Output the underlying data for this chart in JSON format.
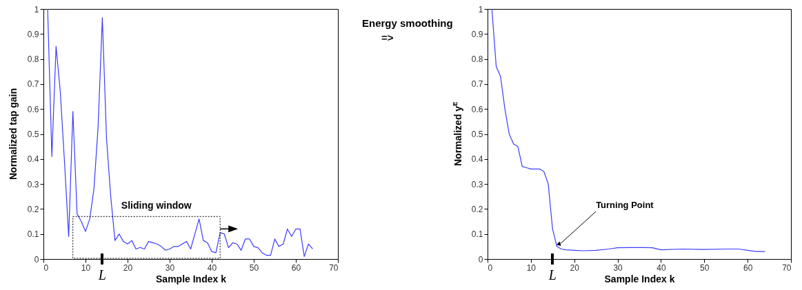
{
  "chart_data": [
    {
      "type": "line",
      "xlabel": "Sample Index k",
      "ylabel": "Normalized tap gain",
      "x": [
        1,
        2,
        3,
        4,
        5,
        6,
        7,
        8,
        9,
        10,
        11,
        12,
        13,
        14,
        15,
        16,
        17,
        18,
        19,
        20,
        21,
        22,
        23,
        24,
        25,
        26,
        27,
        28,
        29,
        30,
        31,
        32,
        33,
        34,
        35,
        36,
        37,
        38,
        39,
        40,
        41,
        42,
        43,
        44,
        45,
        46,
        47,
        48,
        49,
        50,
        51,
        52,
        53,
        54,
        55,
        56,
        57,
        58,
        59,
        60,
        61,
        62,
        63,
        64
      ],
      "series": [
        {
          "color": "#3b3bff",
          "values": [
            1.0,
            0.41,
            0.85,
            0.67,
            0.39,
            0.09,
            0.59,
            0.18,
            0.15,
            0.11,
            0.16,
            0.28,
            0.53,
            0.965,
            0.48,
            0.25,
            0.074,
            0.1,
            0.07,
            0.06,
            0.074,
            0.04,
            0.046,
            0.04,
            0.07,
            0.065,
            0.06,
            0.05,
            0.035,
            0.04,
            0.05,
            0.05,
            0.06,
            0.07,
            0.04,
            0.1,
            0.16,
            0.074,
            0.065,
            0.03,
            0.025,
            0.105,
            0.1,
            0.045,
            0.065,
            0.06,
            0.035,
            0.08,
            0.08,
            0.05,
            0.045,
            0.025,
            0.015,
            0.015,
            0.08,
            0.05,
            0.06,
            0.12,
            0.09,
            0.12,
            0.12,
            0.01,
            0.06,
            0.04
          ]
        }
      ],
      "xlim": [
        0,
        70
      ],
      "xticks": [
        0,
        10,
        20,
        30,
        40,
        50,
        60,
        70
      ],
      "ylim": [
        0,
        1
      ],
      "yticks": [
        0,
        0.1,
        0.2,
        0.3,
        0.4,
        0.5,
        0.6,
        0.7,
        0.8,
        0.9,
        1
      ],
      "annotations": [
        "Sliding window",
        "L",
        "Energy smoothing",
        "=>"
      ]
    },
    {
      "type": "line",
      "xlabel": "Sample Index k",
      "ylabel": "Normalized y$^{E}$",
      "x": [
        1,
        2,
        3,
        4,
        5,
        6,
        7,
        8,
        9,
        10,
        11,
        12,
        13,
        14,
        15,
        16,
        17,
        18,
        20,
        22,
        25,
        28,
        30,
        33,
        36,
        38,
        40,
        45,
        50,
        55,
        58,
        60,
        62,
        64
      ],
      "series": [
        {
          "color": "#3b3bff",
          "values": [
            1.0,
            0.77,
            0.73,
            0.6,
            0.5,
            0.46,
            0.45,
            0.37,
            0.365,
            0.36,
            0.36,
            0.36,
            0.35,
            0.3,
            0.12,
            0.05,
            0.04,
            0.037,
            0.035,
            0.033,
            0.035,
            0.04,
            0.045,
            0.046,
            0.046,
            0.045,
            0.037,
            0.04,
            0.038,
            0.04,
            0.04,
            0.035,
            0.03,
            0.03
          ]
        }
      ],
      "xlim": [
        0,
        70
      ],
      "xticks": [
        0,
        10,
        20,
        30,
        40,
        50,
        60,
        70
      ],
      "ylim": [
        0,
        1
      ],
      "yticks": [
        0,
        0.1,
        0.2,
        0.3,
        0.4,
        0.5,
        0.6,
        0.7,
        0.8,
        0.9,
        1
      ],
      "annotations": [
        "L",
        {
          "text": "Turning Point",
          "x": 16,
          "y": 0.05
        }
      ]
    }
  ]
}
